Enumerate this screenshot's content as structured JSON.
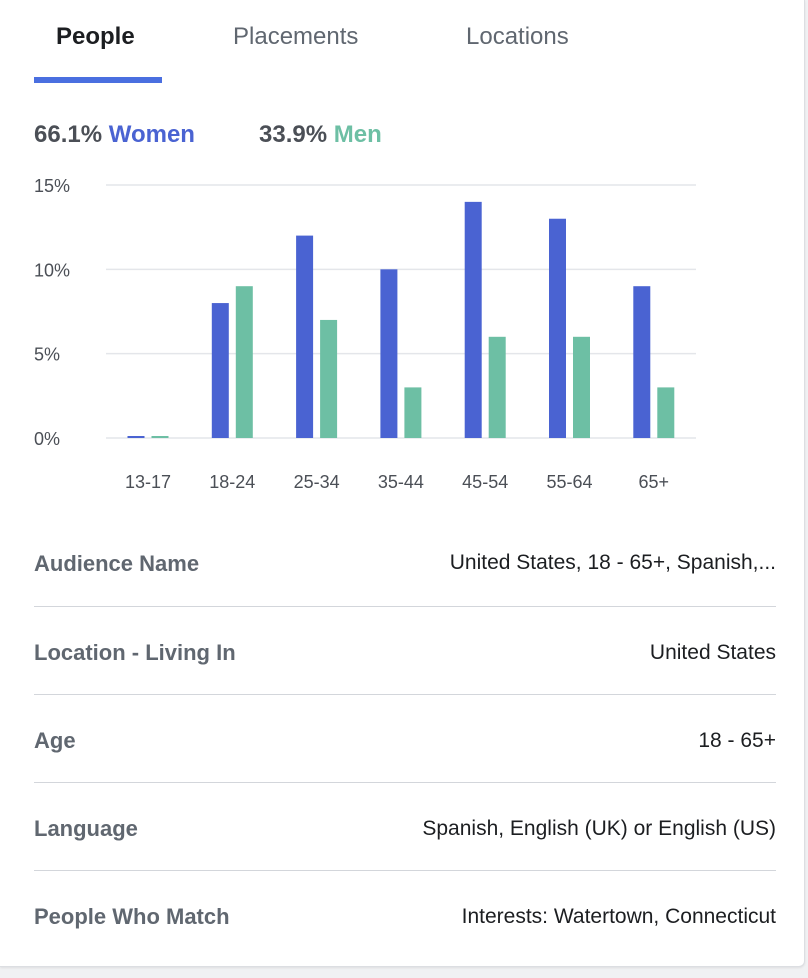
{
  "tabs": [
    {
      "label": "People",
      "active": true
    },
    {
      "label": "Placements",
      "active": false
    },
    {
      "label": "Locations",
      "active": false
    }
  ],
  "gender": {
    "women_pct": "66.1%",
    "women_label": "Women",
    "men_pct": "33.9%",
    "men_label": "Men"
  },
  "colors": {
    "women": "#4a63d2",
    "men": "#6dbfa4",
    "accent": "#4a6fe0"
  },
  "chart_data": {
    "type": "bar",
    "categories": [
      "13-17",
      "18-24",
      "25-34",
      "35-44",
      "45-54",
      "55-64",
      "65+"
    ],
    "series": [
      {
        "name": "Women",
        "values": [
          0.1,
          8,
          12,
          10,
          14,
          13,
          9
        ]
      },
      {
        "name": "Men",
        "values": [
          0.1,
          9,
          7,
          3,
          6,
          6,
          3
        ]
      }
    ],
    "yticks": [
      "0%",
      "5%",
      "10%",
      "15%"
    ],
    "ylim": [
      0,
      15
    ],
    "grid": true
  },
  "details": [
    {
      "label": "Audience Name",
      "value": "United States, 18 - 65+, Spanish,..."
    },
    {
      "label": "Location - Living In",
      "value": "United States"
    },
    {
      "label": "Age",
      "value": "18 - 65+"
    },
    {
      "label": "Language",
      "value": "Spanish, English (UK) or English (US)"
    },
    {
      "label": "People Who Match",
      "value": "Interests: Watertown, Connecticut"
    }
  ]
}
